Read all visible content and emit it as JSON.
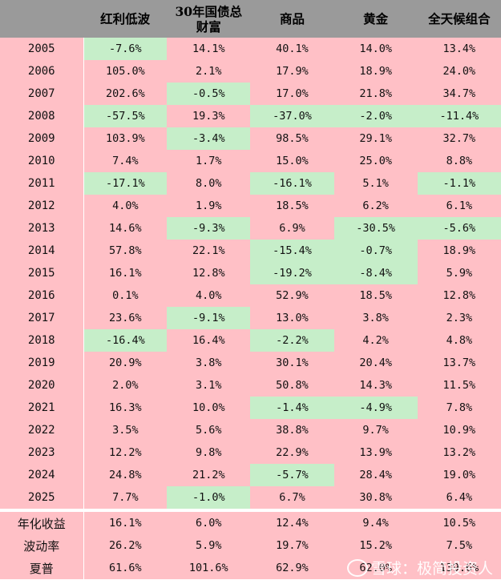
{
  "headers": [
    "",
    "红利低波",
    "30年国债总财富",
    "商品",
    "黄金",
    "全天候组合"
  ],
  "rows": [
    {
      "year": "2005",
      "values": [
        "-7.6%",
        "14.1%",
        "40.1%",
        "14.0%",
        "13.4%"
      ]
    },
    {
      "year": "2006",
      "values": [
        "105.0%",
        "2.1%",
        "17.9%",
        "18.9%",
        "24.0%"
      ]
    },
    {
      "year": "2007",
      "values": [
        "202.6%",
        "-0.5%",
        "17.0%",
        "21.8%",
        "34.7%"
      ]
    },
    {
      "year": "2008",
      "values": [
        "-57.5%",
        "19.3%",
        "-37.0%",
        "-2.0%",
        "-11.4%"
      ]
    },
    {
      "year": "2009",
      "values": [
        "103.9%",
        "-3.4%",
        "98.5%",
        "29.1%",
        "32.7%"
      ]
    },
    {
      "year": "2010",
      "values": [
        "7.4%",
        "1.7%",
        "15.0%",
        "25.0%",
        "8.8%"
      ]
    },
    {
      "year": "2011",
      "values": [
        "-17.1%",
        "8.0%",
        "-16.1%",
        "5.1%",
        "-1.1%"
      ]
    },
    {
      "year": "2012",
      "values": [
        "4.0%",
        "1.9%",
        "18.5%",
        "6.2%",
        "6.1%"
      ]
    },
    {
      "year": "2013",
      "values": [
        "14.6%",
        "-9.3%",
        "6.9%",
        "-30.5%",
        "-5.6%"
      ]
    },
    {
      "year": "2014",
      "values": [
        "57.8%",
        "22.1%",
        "-15.4%",
        "-0.7%",
        "18.9%"
      ]
    },
    {
      "year": "2015",
      "values": [
        "16.1%",
        "12.8%",
        "-19.2%",
        "-8.4%",
        "5.9%"
      ]
    },
    {
      "year": "2016",
      "values": [
        "0.1%",
        "4.0%",
        "52.9%",
        "18.5%",
        "12.8%"
      ]
    },
    {
      "year": "2017",
      "values": [
        "23.6%",
        "-9.1%",
        "13.0%",
        "3.8%",
        "2.3%"
      ]
    },
    {
      "year": "2018",
      "values": [
        "-16.4%",
        "16.4%",
        "-2.2%",
        "4.2%",
        "4.8%"
      ]
    },
    {
      "year": "2019",
      "values": [
        "20.9%",
        "3.8%",
        "30.1%",
        "20.4%",
        "13.7%"
      ]
    },
    {
      "year": "2020",
      "values": [
        "2.0%",
        "3.1%",
        "50.8%",
        "14.3%",
        "11.5%"
      ]
    },
    {
      "year": "2021",
      "values": [
        "16.3%",
        "10.0%",
        "-1.4%",
        "-4.9%",
        "7.8%"
      ]
    },
    {
      "year": "2022",
      "values": [
        "3.5%",
        "5.6%",
        "38.8%",
        "9.7%",
        "10.9%"
      ]
    },
    {
      "year": "2023",
      "values": [
        "12.2%",
        "9.8%",
        "22.9%",
        "13.9%",
        "13.2%"
      ]
    },
    {
      "year": "2024",
      "values": [
        "24.8%",
        "21.2%",
        "-5.7%",
        "28.4%",
        "19.0%"
      ]
    },
    {
      "year": "2025",
      "values": [
        "7.7%",
        "-1.0%",
        "6.7%",
        "30.8%",
        "6.4%"
      ]
    }
  ],
  "summary": [
    {
      "label": "年化收益",
      "values": [
        "16.1%",
        "6.0%",
        "12.4%",
        "9.4%",
        "10.5%"
      ]
    },
    {
      "label": "波动率",
      "values": [
        "26.2%",
        "5.9%",
        "19.7%",
        "15.2%",
        "7.5%"
      ]
    },
    {
      "label": "夏普",
      "values": [
        "61.6%",
        "101.6%",
        "62.9%",
        "62.0%",
        "139.6%"
      ]
    }
  ],
  "watermark": "雪球：极简投资人",
  "colors": {
    "header_bg": "#9a9a9a",
    "positive_bg": "#ffc0c6",
    "negative_bg": "#c6eec9"
  }
}
